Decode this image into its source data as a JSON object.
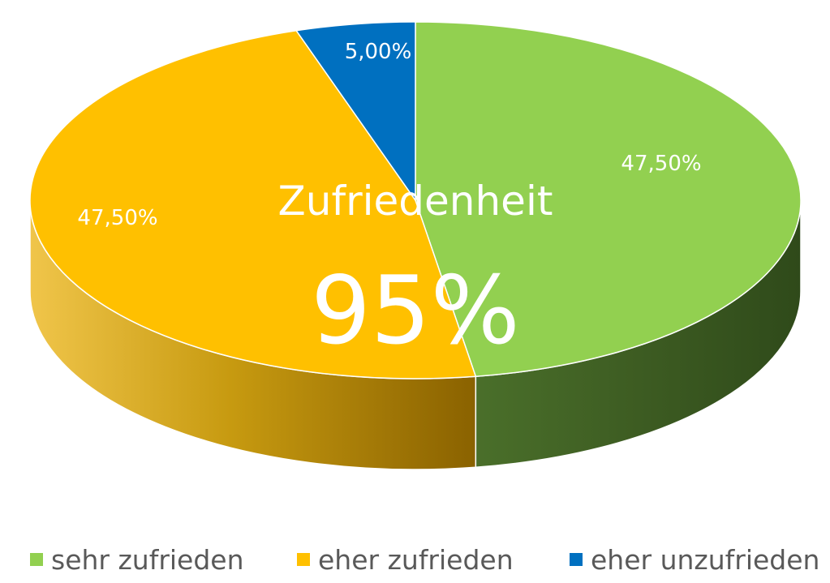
{
  "chart_data": {
    "type": "pie",
    "title": "Zufriedenheit",
    "center_value": "95%",
    "legend_position": "bottom",
    "slices": [
      {
        "name": "sehr zufrieden",
        "value": 47.5,
        "label": "47,50%",
        "color": "#92D050"
      },
      {
        "name": "eher zufrieden",
        "value": 47.5,
        "label": "47,50%",
        "color": "#FFC000"
      },
      {
        "name": "eher unzufrieden",
        "value": 5.0,
        "label": "5,00%",
        "color": "#0070C0"
      }
    ]
  }
}
